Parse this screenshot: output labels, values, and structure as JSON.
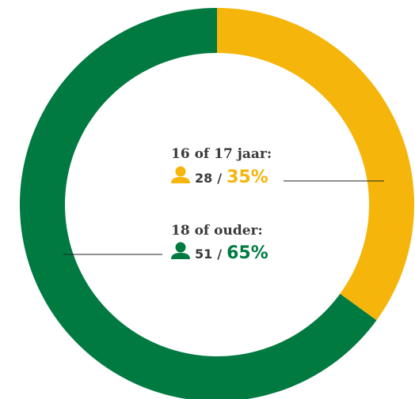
{
  "chart_data": {
    "type": "pie",
    "categories": [
      "16 of 17 jaar:",
      "18 of ouder:"
    ],
    "counts": [
      28,
      51
    ],
    "separator": "/",
    "values": [
      35,
      65
    ],
    "value_labels": [
      "35%",
      "65%"
    ],
    "colors": [
      "#f5b50a",
      "#007a40"
    ]
  }
}
